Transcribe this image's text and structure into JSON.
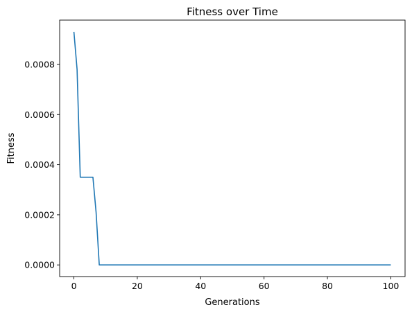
{
  "chart_data": {
    "type": "line",
    "title": "Fitness over Time",
    "xlabel": "Generations",
    "ylabel": "Fitness",
    "xlim": [
      -4.5,
      104.5
    ],
    "ylim": [
      -4.65e-05,
      0.000977
    ],
    "xticks": [
      0,
      20,
      40,
      60,
      80,
      100
    ],
    "xtick_labels": [
      "0",
      "20",
      "40",
      "60",
      "80",
      "100"
    ],
    "yticks": [
      0.0,
      0.0002,
      0.0004,
      0.0006,
      0.0008
    ],
    "ytick_labels": [
      "0.0000",
      "0.0002",
      "0.0004",
      "0.0006",
      "0.0008"
    ],
    "grid": false,
    "legend": "none",
    "series": [
      {
        "color": "#1f77b4",
        "x": [
          0,
          1,
          2,
          3,
          4,
          5,
          6,
          7,
          8,
          9,
          10,
          20,
          30,
          40,
          50,
          60,
          70,
          80,
          90,
          100
        ],
        "y": [
          0.00093,
          0.00078,
          0.00035,
          0.00035,
          0.00035,
          0.00035,
          0.00035,
          0.00021,
          0.0,
          0.0,
          0.0,
          0.0,
          0.0,
          0.0,
          0.0,
          0.0,
          0.0,
          0.0,
          0.0,
          0.0
        ]
      }
    ]
  }
}
